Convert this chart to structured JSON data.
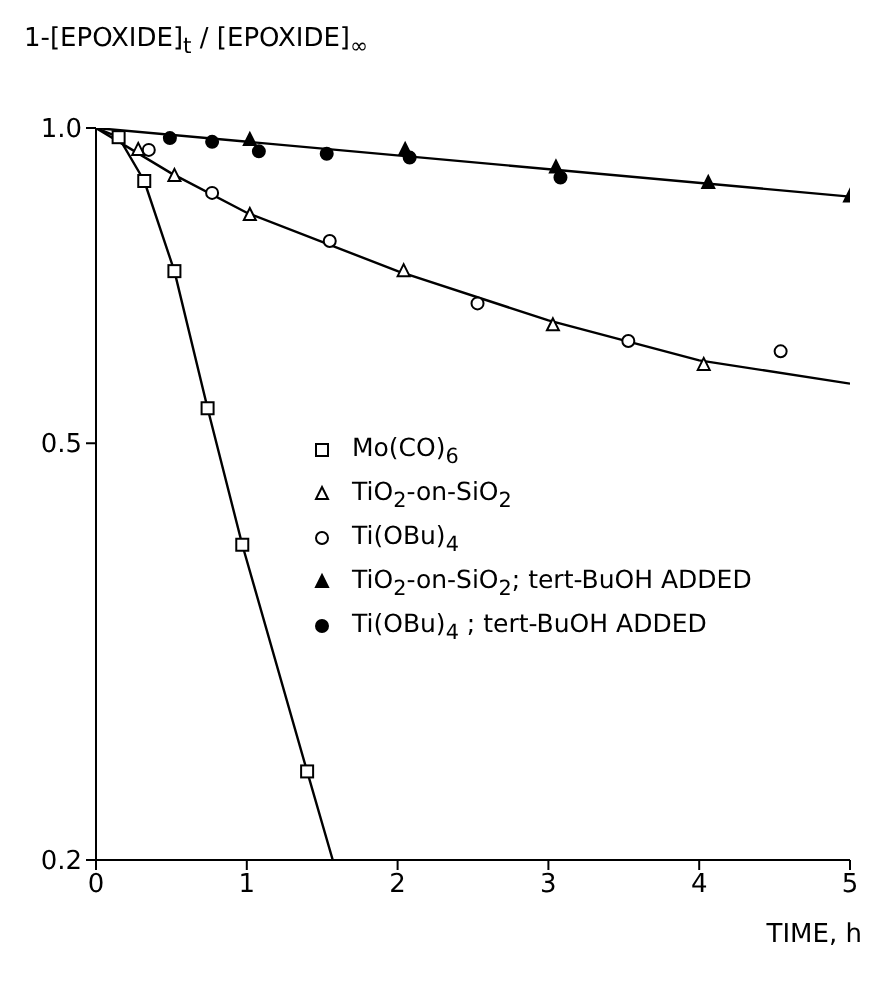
{
  "chart_data": {
    "type": "scatter",
    "xlabel": "TIME, h",
    "ylabel": "1-[EPOXIDE]$_{t}$ / [EPOXIDE]$_{∞}$",
    "log": "y",
    "legend": "center",
    "xlim": [
      0,
      5
    ],
    "xticks": [
      0,
      1,
      2,
      3,
      4,
      5
    ],
    "ylim": [
      0.2,
      1
    ],
    "yticks": [
      0.2,
      0.5,
      {
        "value": 1,
        "label": "1.0"
      }
    ],
    "series": [
      {
        "name": "Mo(CO)$_{6}$",
        "color": "#ffffff",
        "marker": "square",
        "x": [
          0.15,
          0.32,
          0.52,
          0.74,
          0.97,
          1.4
        ],
        "values": [
          0.98,
          0.89,
          0.73,
          0.54,
          0.4,
          0.243
        ]
      },
      {
        "name": "TiO$_{2}$-on-SiO$_{2}$",
        "color": "#ffffff",
        "marker": "triangle",
        "x": [
          0.28,
          0.52,
          1.02,
          2.04,
          3.03,
          4.03
        ],
        "values": [
          0.953,
          0.9,
          0.826,
          0.73,
          0.648,
          0.594
        ]
      },
      {
        "name": "Ti(OBu)$_{4}$",
        "color": "#ffffff",
        "marker": "circle",
        "x": [
          0.35,
          0.77,
          1.55,
          2.53,
          3.53,
          4.54
        ],
        "values": [
          0.953,
          0.867,
          0.78,
          0.68,
          0.626,
          0.612
        ]
      },
      {
        "name": "TiO$_{2}$-on-SiO$_{2}$; tert-BuOH ADDED",
        "color": "#000000",
        "marker": "triangle",
        "x": [
          1.02,
          2.05,
          3.05,
          4.06,
          5.0
        ],
        "values": [
          0.974,
          0.953,
          0.917,
          0.886,
          0.86
        ]
      },
      {
        "name": "Ti(OBu)$_{4}$ ; tert-BuOH ADDED",
        "color": "#000000",
        "marker": "circle",
        "x": [
          0.49,
          0.77,
          1.08,
          1.53,
          2.08,
          3.08
        ],
        "values": [
          0.978,
          0.97,
          0.95,
          0.945,
          0.937,
          0.897
        ]
      },
      {
        "type": "line",
        "color": "#000000",
        "marker": "none",
        "x": [
          0,
          0.15,
          0.32,
          0.52,
          0.74,
          0.97,
          1.4,
          1.57
        ],
        "values": [
          1,
          0.98,
          0.89,
          0.73,
          0.54,
          0.4,
          0.243,
          0.2
        ]
      },
      {
        "type": "line",
        "color": "#000000",
        "marker": "none",
        "x": [
          0,
          0.5,
          1,
          2,
          3,
          4,
          5
        ],
        "values": [
          1,
          0.905,
          0.83,
          0.73,
          0.655,
          0.6,
          0.57
        ]
      },
      {
        "type": "line",
        "color": "#000000",
        "marker": "none",
        "x": [
          0,
          5
        ],
        "values": [
          1,
          0.86
        ]
      }
    ]
  }
}
